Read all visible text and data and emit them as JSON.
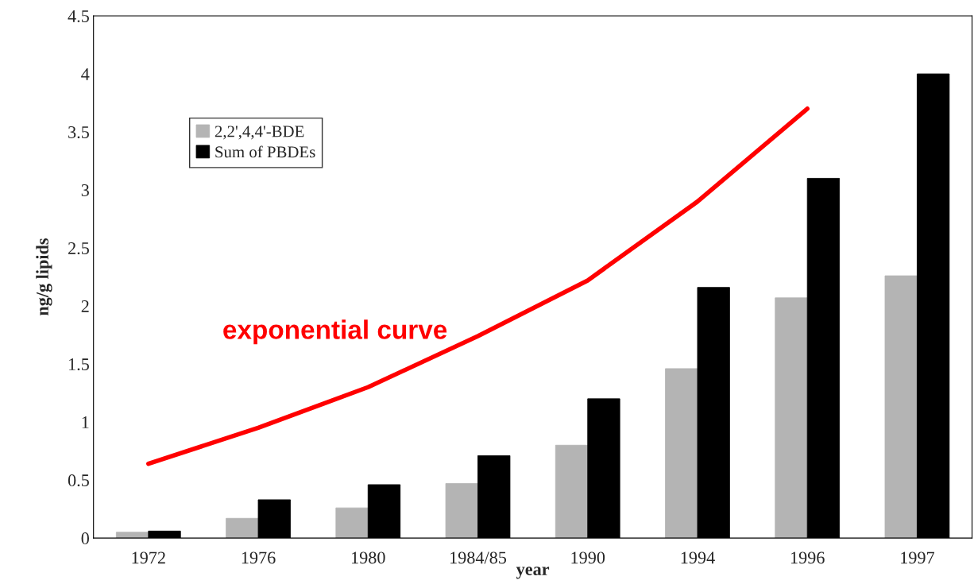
{
  "chart_data": {
    "type": "bar",
    "xlabel": "year",
    "ylabel": "ng/g lipids",
    "categories": [
      "1972",
      "1976",
      "1980",
      "1984/85",
      "1990",
      "1994",
      "1996",
      "1997"
    ],
    "series": [
      {
        "name": "2,2',4,4'-BDE",
        "color": "#b4b4b4",
        "values": [
          0.05,
          0.17,
          0.26,
          0.47,
          0.8,
          1.46,
          2.07,
          2.26
        ]
      },
      {
        "name": "Sum of PBDEs",
        "color": "#000000",
        "values": [
          0.06,
          0.33,
          0.46,
          0.71,
          1.2,
          2.16,
          3.1,
          4.0
        ]
      },
      {
        "name": "exponential curve",
        "type": "line",
        "color": "#ff0000",
        "values": [
          0.64,
          0.95,
          1.3,
          1.74,
          2.22,
          2.9,
          3.7,
          null
        ]
      }
    ],
    "ylim": [
      0,
      4.5
    ],
    "yticks": [
      0,
      0.5,
      1,
      1.5,
      2,
      2.5,
      3,
      3.5,
      4,
      4.5
    ],
    "legend": "top left",
    "grid": false
  }
}
